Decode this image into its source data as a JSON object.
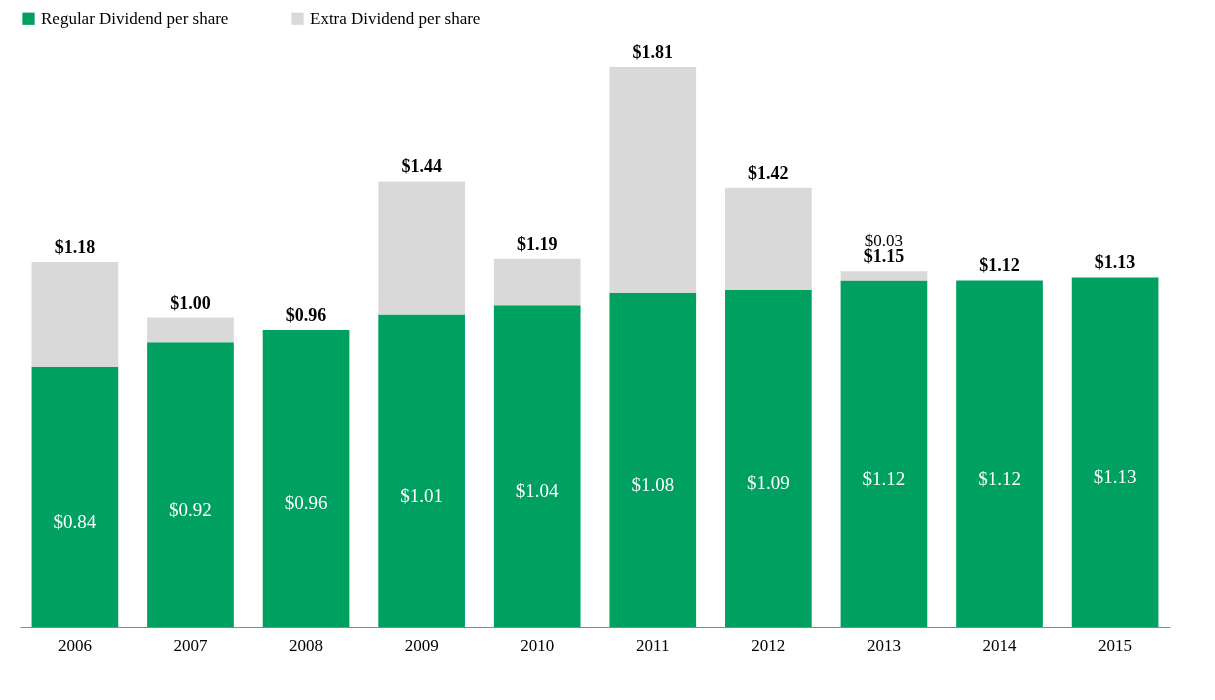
{
  "chart_data": {
    "type": "bar",
    "stacked": true,
    "legend": "top",
    "grid": false,
    "categories": [
      "2006",
      "2007",
      "2008",
      "2009",
      "2010",
      "2011",
      "2012",
      "2013",
      "2014",
      "2015"
    ],
    "series": [
      {
        "name": "Regular Dividend per share",
        "color": "#00a160",
        "values": [
          0.84,
          0.92,
          0.96,
          1.01,
          1.04,
          1.08,
          1.09,
          1.12,
          1.12,
          1.13
        ],
        "value_labels": [
          "$0.84",
          "$0.92",
          "$0.96",
          "$1.01",
          "$1.04",
          "$1.08",
          "$1.09",
          "$1.12",
          "$1.12",
          "$1.13"
        ]
      },
      {
        "name": "Extra Dividend per share",
        "color": "#d9d9d9",
        "values": [
          0.34,
          0.08,
          0,
          0.43,
          0.15,
          0.73,
          0.33,
          0.03,
          0,
          0
        ],
        "value_labels": [
          null,
          null,
          null,
          null,
          null,
          null,
          null,
          "$0.03",
          null,
          null
        ]
      }
    ],
    "totals": [
      "$1.18",
      "$1.00",
      "$0.96",
      "$1.44",
      "$1.19",
      "$1.81",
      "$1.42",
      "$1.15",
      "$1.12",
      "$1.13"
    ]
  }
}
